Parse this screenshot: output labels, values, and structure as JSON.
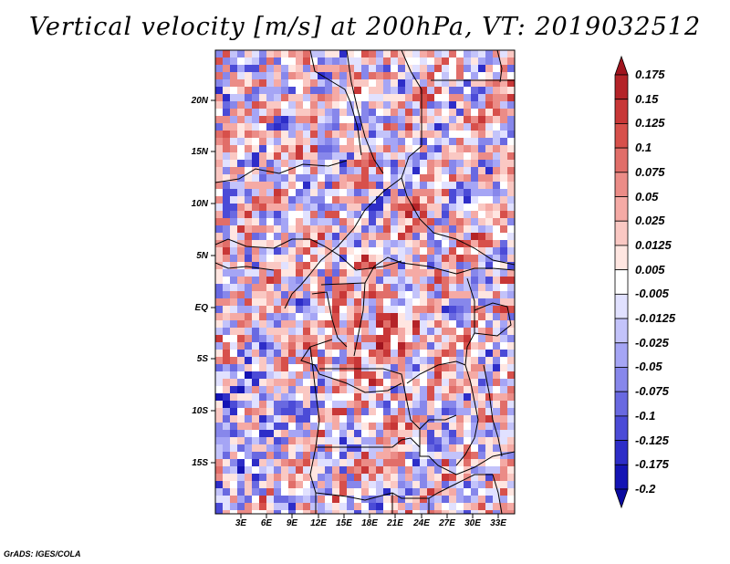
{
  "title": "Vertical velocity [m/s] at 200hPa, VT: 2019032512",
  "credit": "GrADS: IGES/COLA",
  "map": {
    "variable": "Vertical velocity",
    "units": "m/s",
    "level": "200hPa",
    "valid_time": "2019032512",
    "lat_labels": [
      "20N",
      "15N",
      "10N",
      "5N",
      "EQ",
      "5S",
      "10S",
      "15S"
    ],
    "lon_labels": [
      "3E",
      "6E",
      "9E",
      "12E",
      "15E",
      "18E",
      "21E",
      "24E",
      "27E",
      "30E",
      "33E"
    ]
  },
  "legend": {
    "labels": [
      "0.175",
      "0.15",
      "0.125",
      "0.1",
      "0.075",
      "0.05",
      "0.025",
      "0.0125",
      "0.005",
      "-0.005",
      "-0.0125",
      "-0.025",
      "-0.05",
      "-0.075",
      "-0.1",
      "-0.125",
      "-0.175",
      "-0.2"
    ],
    "colors": [
      "#a0141e",
      "#b42328",
      "#c83737",
      "#d7504b",
      "#e16e69",
      "#eb8c87",
      "#f5aaa5",
      "#fac8c3",
      "#ffe6e1",
      "#ffffff",
      "#e1e1ff",
      "#c3c3fa",
      "#a5a5f5",
      "#8787eb",
      "#6969e1",
      "#4b4bd7",
      "#2d2dc8",
      "#1414b4",
      "#0a0aa0"
    ]
  }
}
